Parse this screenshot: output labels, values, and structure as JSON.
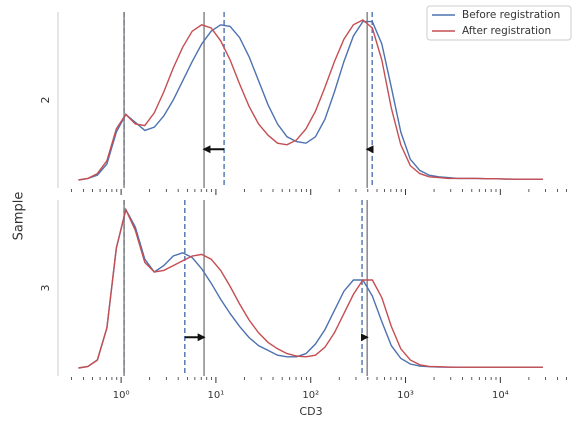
{
  "chart_data": {
    "type": "line",
    "xlabel": "CD3",
    "ylabel": "Sample",
    "xscale": "log",
    "xlim": [
      0.216,
      57000
    ],
    "xticks": [
      {
        "value": 1,
        "label": "10⁰"
      },
      {
        "value": 10,
        "label": "10¹"
      },
      {
        "value": 100,
        "label": "10²"
      },
      {
        "value": 1000,
        "label": "10³"
      },
      {
        "value": 10000,
        "label": "10⁴"
      }
    ],
    "xminorticks": [
      0.3,
      0.4,
      0.5,
      0.6,
      0.7,
      0.8,
      0.9,
      2,
      3,
      4,
      5,
      6,
      7,
      8,
      9,
      20,
      30,
      40,
      50,
      60,
      70,
      80,
      90,
      200,
      300,
      400,
      500,
      600,
      700,
      800,
      900,
      2000,
      3000,
      4000,
      5000,
      6000,
      7000,
      8000,
      9000,
      20000,
      30000,
      40000,
      50000
    ],
    "legend": "upper right",
    "legend_entries": [
      {
        "name": "Before registration",
        "color": "#4c72b0"
      },
      {
        "name": "After registration",
        "color": "#c44e52"
      }
    ],
    "x": [
      0.355,
      0.447,
      0.562,
      0.708,
      0.891,
      1.122,
      1.413,
      1.778,
      2.239,
      2.818,
      3.548,
      4.467,
      5.623,
      7.079,
      8.913,
      11.22,
      14.13,
      17.78,
      22.39,
      28.18,
      35.48,
      44.67,
      56.23,
      70.79,
      89.13,
      112.2,
      141.3,
      177.8,
      223.9,
      281.8,
      354.8,
      446.7,
      562.3,
      707.9,
      891.3,
      1122,
      1413,
      1778,
      2239,
      2818,
      3548,
      4467,
      5623,
      7079,
      8913,
      11220,
      14130,
      17780,
      22390,
      28180
    ],
    "panels": [
      {
        "label": "2",
        "ylim": [
          -0.05,
          1.05
        ],
        "series": [
          {
            "color": "#4c72b0",
            "landmark_color": "#4c72b0",
            "landmark_dash": true,
            "landmarks": [
              1.075,
              12.2,
              445
            ],
            "values": [
              0.0,
              0.01,
              0.03,
              0.1,
              0.3,
              0.41,
              0.36,
              0.31,
              0.33,
              0.4,
              0.5,
              0.62,
              0.74,
              0.85,
              0.93,
              0.97,
              0.96,
              0.89,
              0.77,
              0.62,
              0.47,
              0.35,
              0.27,
              0.24,
              0.23,
              0.27,
              0.38,
              0.55,
              0.74,
              0.9,
              0.99,
              0.99,
              0.85,
              0.58,
              0.3,
              0.13,
              0.06,
              0.03,
              0.02,
              0.015,
              0.01,
              0.01,
              0.01,
              0.008,
              0.008,
              0.006,
              0.005,
              0.005,
              0.005,
              0.005
            ]
          },
          {
            "color": "#c44e52",
            "landmark_color": "#808080",
            "landmark_dash": false,
            "landmarks": [
              1.075,
              7.5,
              394
            ],
            "values": [
              0.0,
              0.01,
              0.04,
              0.12,
              0.32,
              0.41,
              0.35,
              0.34,
              0.42,
              0.55,
              0.7,
              0.83,
              0.93,
              0.97,
              0.95,
              0.87,
              0.75,
              0.6,
              0.46,
              0.35,
              0.28,
              0.23,
              0.22,
              0.25,
              0.32,
              0.43,
              0.58,
              0.74,
              0.88,
              0.97,
              1.0,
              0.95,
              0.75,
              0.45,
              0.22,
              0.09,
              0.04,
              0.02,
              0.015,
              0.01,
              0.01,
              0.01,
              0.01,
              0.008,
              0.008,
              0.006,
              0.005,
              0.005,
              0.005,
              0.005
            ]
          }
        ]
      },
      {
        "label": "3",
        "ylim": [
          -0.05,
          1.05
        ],
        "series": [
          {
            "color": "#4c72b0",
            "landmark_color": "#4c72b0",
            "landmark_dash": true,
            "landmarks": [
              1.075,
              4.7,
              348
            ],
            "values": [
              0.0,
              0.01,
              0.05,
              0.25,
              0.75,
              0.99,
              0.88,
              0.68,
              0.6,
              0.64,
              0.7,
              0.72,
              0.69,
              0.62,
              0.53,
              0.43,
              0.34,
              0.26,
              0.19,
              0.14,
              0.11,
              0.08,
              0.07,
              0.07,
              0.09,
              0.15,
              0.24,
              0.36,
              0.48,
              0.55,
              0.55,
              0.45,
              0.29,
              0.14,
              0.06,
              0.025,
              0.012,
              0.008,
              0.006,
              0.005,
              0.005,
              0.005,
              0.005,
              0.005,
              0.005,
              0.005,
              0.005,
              0.005,
              0.005,
              0.005
            ]
          },
          {
            "color": "#c44e52",
            "landmark_color": "#808080",
            "landmark_dash": false,
            "landmarks": [
              1.075,
              7.5,
              394
            ],
            "values": [
              0.0,
              0.01,
              0.05,
              0.25,
              0.75,
              0.99,
              0.86,
              0.66,
              0.6,
              0.61,
              0.64,
              0.67,
              0.7,
              0.71,
              0.68,
              0.61,
              0.51,
              0.4,
              0.3,
              0.22,
              0.16,
              0.12,
              0.09,
              0.075,
              0.07,
              0.08,
              0.13,
              0.22,
              0.34,
              0.46,
              0.55,
              0.55,
              0.44,
              0.26,
              0.12,
              0.05,
              0.02,
              0.01,
              0.008,
              0.006,
              0.005,
              0.005,
              0.005,
              0.005,
              0.005,
              0.005,
              0.005,
              0.005,
              0.005,
              0.005
            ]
          }
        ]
      }
    ]
  }
}
